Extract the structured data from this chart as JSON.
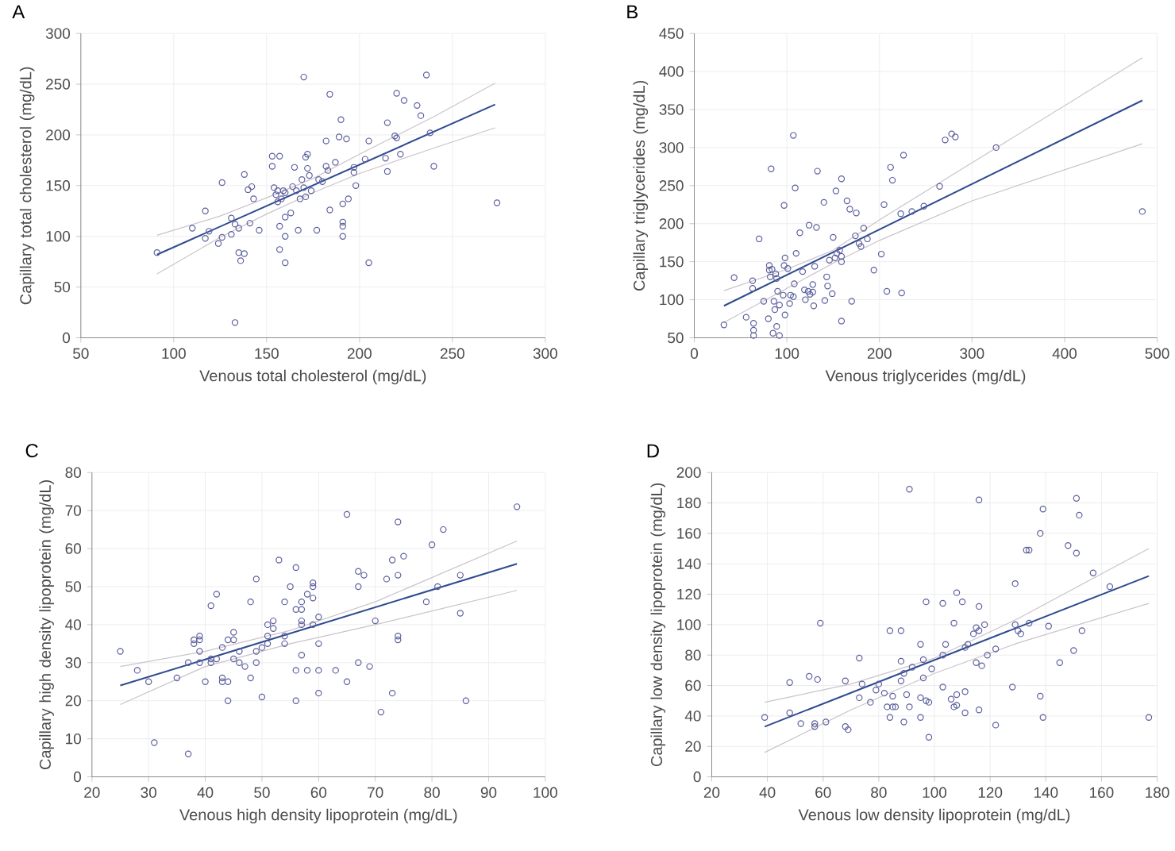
{
  "chart_data": [
    {
      "type": "scatter",
      "title": "A",
      "xlabel": "Venous total cholesterol (mg/dL)",
      "ylabel": "Capillary total cholesterol (mg/dL)",
      "xlim": [
        50,
        300
      ],
      "ylim": [
        0,
        300
      ],
      "xticks": [
        50,
        100,
        150,
        200,
        250,
        300
      ],
      "yticks": [
        0,
        50,
        100,
        150,
        200,
        250,
        300
      ],
      "grid": true,
      "series": [
        {
          "type": "line",
          "color": "#cbc3cb",
          "x": [
            91,
            125,
            150,
            175,
            200,
            240,
            273
          ],
          "values": [
            101,
            120,
            138,
            157,
            181,
            218,
            251
          ]
        },
        {
          "type": "line",
          "color": "#cbc3cb",
          "x": [
            91,
            125,
            150,
            175,
            200,
            240,
            273
          ],
          "values": [
            63,
            99,
            122,
            143,
            162,
            187,
            207
          ]
        },
        {
          "type": "line",
          "color": "#2f4b8f",
          "x": [
            91,
            273
          ],
          "values": [
            82,
            230
          ]
        },
        {
          "color": "#5b5f9c",
          "marker": "circle",
          "x": [
            91,
            110,
            117,
            117,
            119,
            124,
            126,
            126,
            131,
            131,
            133,
            133,
            135,
            135,
            136,
            138,
            138,
            140,
            141,
            142,
            143,
            146,
            153,
            153,
            154,
            155,
            156,
            156,
            157,
            157,
            157,
            158,
            159,
            160,
            160,
            160,
            160,
            163,
            164,
            165,
            166,
            167,
            168,
            169,
            170,
            170,
            171,
            171,
            172,
            172,
            173,
            174,
            177,
            178,
            180,
            182,
            182,
            183,
            184,
            184,
            187,
            189,
            190,
            191,
            191,
            191,
            191,
            193,
            194,
            197,
            197,
            198,
            203,
            205,
            205,
            214,
            215,
            215,
            219,
            220,
            220,
            222,
            224,
            231,
            233,
            236,
            238,
            240,
            274
          ],
          "values": [
            84,
            108,
            125,
            98,
            105,
            93,
            153,
            99,
            118,
            102,
            112,
            15,
            108,
            84,
            76,
            161,
            83,
            146,
            113,
            149,
            137,
            106,
            179,
            169,
            148,
            141,
            134,
            145,
            179,
            110,
            87,
            137,
            145,
            143,
            119,
            100,
            74,
            123,
            149,
            168,
            145,
            106,
            137,
            156,
            257,
            148,
            139,
            178,
            181,
            167,
            160,
            145,
            106,
            156,
            154,
            194,
            169,
            165,
            240,
            126,
            173,
            198,
            215,
            132,
            114,
            110,
            100,
            196,
            137,
            168,
            163,
            150,
            176,
            194,
            74,
            177,
            212,
            164,
            199,
            241,
            197,
            181,
            234,
            229,
            219,
            259,
            202,
            169,
            133
          ]
        }
      ]
    },
    {
      "type": "scatter",
      "title": "B",
      "xlabel": "Venous triglycerides (mg/dL)",
      "ylabel": "Capillary triglycerides (mg/dL)",
      "xlim": [
        0,
        500
      ],
      "ylim": [
        50,
        450
      ],
      "xticks": [
        0,
        100,
        200,
        300,
        400,
        500
      ],
      "yticks": [
        50,
        100,
        150,
        200,
        250,
        300,
        350,
        400,
        450
      ],
      "grid": true,
      "series": [
        {
          "type": "line",
          "color": "#cbc3cb",
          "x": [
            32,
            100,
            150,
            200,
            300,
            484
          ],
          "values": [
            112,
            140,
            165,
            205,
            280,
            418
          ]
        },
        {
          "type": "line",
          "color": "#cbc3cb",
          "x": [
            32,
            100,
            150,
            200,
            300,
            484
          ],
          "values": [
            70,
            115,
            148,
            178,
            230,
            305
          ]
        },
        {
          "type": "line",
          "color": "#2f4b8f",
          "x": [
            32,
            484
          ],
          "values": [
            92,
            362
          ]
        },
        {
          "color": "#5b5f9c",
          "marker": "circle",
          "x": [
            32,
            43,
            56,
            63,
            63,
            64,
            64,
            64,
            70,
            75,
            80,
            81,
            81,
            82,
            83,
            84,
            85,
            86,
            87,
            88,
            89,
            89,
            90,
            92,
            92,
            96,
            97,
            97,
            98,
            98,
            101,
            103,
            104,
            107,
            107,
            108,
            109,
            110,
            114,
            117,
            119,
            120,
            123,
            124,
            125,
            128,
            128,
            129,
            130,
            132,
            133,
            140,
            141,
            143,
            144,
            146,
            149,
            150,
            152,
            153,
            154,
            157,
            159,
            159,
            159,
            159,
            165,
            168,
            170,
            174,
            175,
            178,
            180,
            183,
            187,
            194,
            202,
            205,
            208,
            212,
            214,
            223,
            224,
            226,
            235,
            248,
            265,
            271,
            278,
            282,
            326,
            484
          ],
          "values": [
            67,
            129,
            77,
            125,
            115,
            60,
            53,
            69,
            180,
            98,
            75,
            145,
            139,
            130,
            272,
            140,
            56,
            98,
            87,
            134,
            65,
            128,
            111,
            93,
            53,
            106,
            224,
            145,
            155,
            80,
            141,
            95,
            106,
            316,
            104,
            121,
            247,
            161,
            188,
            137,
            113,
            100,
            111,
            198,
            107,
            120,
            110,
            92,
            144,
            195,
            269,
            228,
            99,
            130,
            118,
            152,
            108,
            182,
            155,
            243,
            161,
            165,
            259,
            72,
            157,
            150,
            230,
            219,
            98,
            184,
            214,
            174,
            170,
            194,
            180,
            139,
            160,
            225,
            111,
            274,
            257,
            213,
            109,
            290,
            216,
            223,
            249,
            310,
            318,
            314,
            300,
            216
          ]
        }
      ]
    },
    {
      "type": "scatter",
      "title": "C",
      "xlabel": "Venous high density lipoprotein (mg/dL)",
      "ylabel": "Capillary high density lipoprotein (mg/dL)",
      "xlim": [
        20,
        100
      ],
      "ylim": [
        0,
        80
      ],
      "xticks": [
        20,
        30,
        40,
        50,
        60,
        70,
        80,
        90,
        100
      ],
      "yticks": [
        0,
        10,
        20,
        30,
        40,
        50,
        60,
        70,
        80
      ],
      "grid": true,
      "series": [
        {
          "type": "line",
          "color": "#cbc3cb",
          "x": [
            25,
            40,
            55,
            70,
            95
          ],
          "values": [
            29,
            33,
            38.5,
            46,
            62
          ]
        },
        {
          "type": "line",
          "color": "#cbc3cb",
          "x": [
            25,
            40,
            55,
            70,
            95
          ],
          "values": [
            19,
            29,
            35,
            40,
            49
          ]
        },
        {
          "type": "line",
          "color": "#2f4b8f",
          "x": [
            25,
            95
          ],
          "values": [
            24,
            56
          ]
        },
        {
          "color": "#5b5f9c",
          "marker": "circle",
          "x": [
            25,
            28,
            30,
            31,
            35,
            37,
            37,
            38,
            38,
            39,
            39,
            39,
            39,
            40,
            41,
            41,
            41,
            42,
            42,
            43,
            43,
            43,
            44,
            44,
            44,
            45,
            45,
            45,
            46,
            46,
            47,
            48,
            48,
            49,
            49,
            49,
            50,
            50,
            51,
            51,
            51,
            52,
            52,
            53,
            54,
            54,
            54,
            55,
            56,
            56,
            56,
            56,
            57,
            57,
            57,
            57,
            57,
            58,
            58,
            59,
            59,
            59,
            59,
            60,
            60,
            60,
            60,
            63,
            65,
            65,
            67,
            67,
            67,
            68,
            69,
            70,
            71,
            72,
            73,
            73,
            74,
            74,
            74,
            74,
            75,
            79,
            80,
            81,
            82,
            85,
            85,
            86,
            95
          ],
          "values": [
            33,
            28,
            25,
            9,
            26,
            30,
            6,
            36,
            35,
            37,
            36,
            33,
            30,
            25,
            45,
            31,
            30,
            48,
            31,
            34,
            26,
            25,
            25,
            36,
            20,
            38,
            36,
            31,
            33,
            30,
            29,
            46,
            26,
            52,
            33,
            30,
            34,
            21,
            37,
            40,
            35,
            41,
            39,
            57,
            46,
            37,
            35,
            50,
            55,
            44,
            28,
            20,
            46,
            44,
            41,
            40,
            32,
            48,
            28,
            51,
            50,
            47,
            40,
            42,
            35,
            28,
            22,
            28,
            69,
            25,
            54,
            50,
            30,
            53,
            29,
            41,
            17,
            52,
            57,
            22,
            67,
            53,
            37,
            36,
            58,
            46,
            61,
            50,
            65,
            53,
            43,
            20,
            71
          ]
        }
      ]
    },
    {
      "type": "scatter",
      "title": "D",
      "xlabel": "Venous low density lipoprotein (mg/dL)",
      "ylabel": "Capillary low density lipoprotein (mg/dL)",
      "xlim": [
        20,
        180
      ],
      "ylim": [
        0,
        200
      ],
      "xticks": [
        20,
        40,
        60,
        80,
        100,
        120,
        140,
        160,
        180
      ],
      "yticks": [
        0,
        20,
        40,
        60,
        80,
        100,
        120,
        140,
        160,
        180,
        200
      ],
      "grid": true,
      "series": [
        {
          "type": "line",
          "color": "#cbc3cb",
          "x": [
            39,
            70,
            100,
            130,
            177
          ],
          "values": [
            49,
            61,
            78,
            104,
            150
          ]
        },
        {
          "type": "line",
          "color": "#cbc3cb",
          "x": [
            39,
            70,
            100,
            130,
            177
          ],
          "values": [
            16,
            44,
            68,
            88,
            114
          ]
        },
        {
          "type": "line",
          "color": "#2f4b8f",
          "x": [
            39,
            177
          ],
          "values": [
            33,
            132
          ]
        },
        {
          "color": "#5b5f9c",
          "marker": "circle",
          "x": [
            39,
            48,
            48,
            52,
            55,
            57,
            57,
            58,
            59,
            61,
            68,
            68,
            69,
            73,
            73,
            74,
            77,
            79,
            80,
            82,
            83,
            84,
            84,
            85,
            85,
            86,
            88,
            88,
            88,
            89,
            89,
            90,
            91,
            91,
            92,
            95,
            95,
            95,
            96,
            96,
            97,
            97,
            98,
            98,
            99,
            103,
            103,
            103,
            104,
            106,
            107,
            107,
            108,
            108,
            108,
            110,
            111,
            111,
            111,
            112,
            114,
            115,
            115,
            116,
            116,
            116,
            116,
            117,
            118,
            119,
            122,
            122,
            128,
            129,
            129,
            130,
            131,
            133,
            134,
            134,
            138,
            138,
            139,
            139,
            141,
            145,
            148,
            150,
            151,
            151,
            152,
            153,
            157,
            163,
            177
          ],
          "values": [
            39,
            62,
            42,
            35,
            66,
            35,
            33,
            64,
            101,
            36,
            63,
            33,
            31,
            78,
            52,
            61,
            49,
            57,
            61,
            55,
            46,
            96,
            39,
            46,
            53,
            46,
            96,
            76,
            63,
            68,
            36,
            54,
            189,
            46,
            72,
            87,
            52,
            39,
            77,
            65,
            115,
            50,
            49,
            26,
            71,
            80,
            114,
            59,
            87,
            51,
            101,
            46,
            121,
            47,
            54,
            115,
            85,
            56,
            42,
            87,
            94,
            98,
            75,
            182,
            112,
            96,
            44,
            73,
            100,
            80,
            84,
            34,
            59,
            127,
            100,
            96,
            94,
            149,
            149,
            101,
            160,
            53,
            176,
            39,
            99,
            75,
            152,
            83,
            183,
            147,
            172,
            96,
            134,
            125,
            39
          ]
        }
      ]
    }
  ]
}
